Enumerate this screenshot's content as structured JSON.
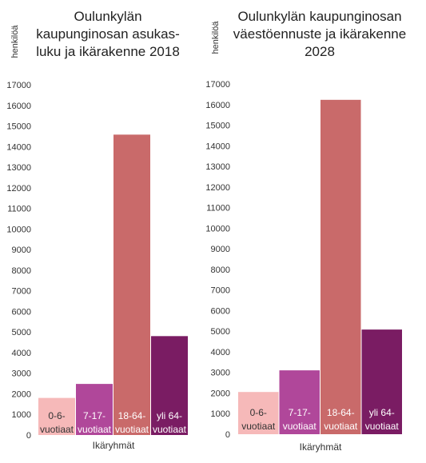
{
  "chart_data": [
    {
      "type": "bar",
      "title_lines": [
        "Oulunkylän",
        "kaupunginosan asukas-",
        "luku ja ikärakenne 2018"
      ],
      "ylabel": "henkilöä",
      "xlabel": "Ikäryhmät",
      "ylim": [
        0,
        17000
      ],
      "ytick_step": 1000,
      "grid": false,
      "categories": [
        [
          "0-6-",
          "vuotiaat"
        ],
        [
          "7-17-",
          "vuotiaat"
        ],
        [
          "18-64-",
          "vuotiaat"
        ],
        [
          "yli 64-",
          "vuotiaat"
        ]
      ],
      "values": [
        1800,
        2480,
        14580,
        4800
      ],
      "colors": [
        "#f6b9b9",
        "#b0479a",
        "#c96a6a",
        "#7a1c63"
      ],
      "label_colors": [
        "#333333",
        "#ffffff",
        "#ffffff",
        "#ffffff"
      ]
    },
    {
      "type": "bar",
      "title_lines": [
        "Oulunkylän kaupunginosan",
        "väestöennuste ja ikärakenne",
        "2028"
      ],
      "ylabel": "henkilöä",
      "xlabel": "Ikäryhmät",
      "ylim": [
        0,
        17000
      ],
      "ytick_step": 1000,
      "grid": false,
      "categories": [
        [
          "0-6-",
          "vuotiaat"
        ],
        [
          "7-17-",
          "vuotiaat"
        ],
        [
          "18-64-",
          "vuotiaat"
        ],
        [
          "yli 64-",
          "vuotiaat"
        ]
      ],
      "values": [
        2050,
        3100,
        16230,
        5080
      ],
      "colors": [
        "#f6b9b9",
        "#b0479a",
        "#c96a6a",
        "#7a1c63"
      ],
      "label_colors": [
        "#333333",
        "#ffffff",
        "#ffffff",
        "#ffffff"
      ]
    }
  ]
}
